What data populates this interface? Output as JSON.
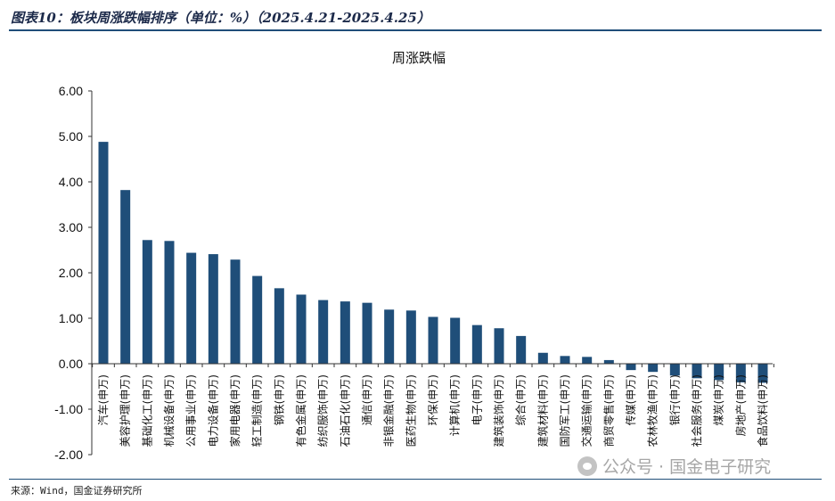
{
  "figure_title": "图表10：板块周涨跌幅排序（单位：%）（2025.4.21-2025.4.25）",
  "source": "来源：Wind，国金证券研究所",
  "watermark": "公众号 · 国金电子研究",
  "colors": {
    "bar": "#1f4e79",
    "axis": "#333333",
    "rule": "#1f4e79"
  },
  "chart_data": {
    "type": "bar",
    "title": "周涨跌幅",
    "xlabel": "",
    "ylabel": "",
    "ylim": [
      -2.0,
      6.0
    ],
    "yticks": [
      "6.00",
      "5.00",
      "4.00",
      "3.00",
      "2.00",
      "1.00",
      "0.00",
      "-1.00",
      "-2.00"
    ],
    "ytick_values": [
      6,
      5,
      4,
      3,
      2,
      1,
      0,
      -1,
      -2
    ],
    "grid": false,
    "categories": [
      "汽车(申万)",
      "美容护理(申万)",
      "基础化工(申万)",
      "机械设备(申万)",
      "公用事业(申万)",
      "电力设备(申万)",
      "家用电器(申万)",
      "轻工制造(申万)",
      "钢铁(申万)",
      "有色金属(申万)",
      "纺织服饰(申万)",
      "石油石化(申万)",
      "通信(申万)",
      "非银金融(申万)",
      "医药生物(申万)",
      "环保(申万)",
      "计算机(申万)",
      "电子(申万)",
      "建筑装饰(申万)",
      "综合(申万)",
      "建筑材料(申万)",
      "国防军工(申万)",
      "交通运输(申万)",
      "商贸零售(申万)",
      "传媒(申万)",
      "农林牧渔(申万)",
      "银行(申万)",
      "社会服务(申万)",
      "煤炭(申万)",
      "房地产(申万)",
      "食品饮料(申万)"
    ],
    "values": [
      4.88,
      3.82,
      2.72,
      2.7,
      2.44,
      2.41,
      2.29,
      1.93,
      1.66,
      1.52,
      1.4,
      1.37,
      1.34,
      1.19,
      1.17,
      1.03,
      1.01,
      0.85,
      0.78,
      0.61,
      0.24,
      0.17,
      0.15,
      0.08,
      -0.14,
      -0.18,
      -0.26,
      -0.32,
      -0.36,
      -0.41,
      -0.42
    ]
  }
}
